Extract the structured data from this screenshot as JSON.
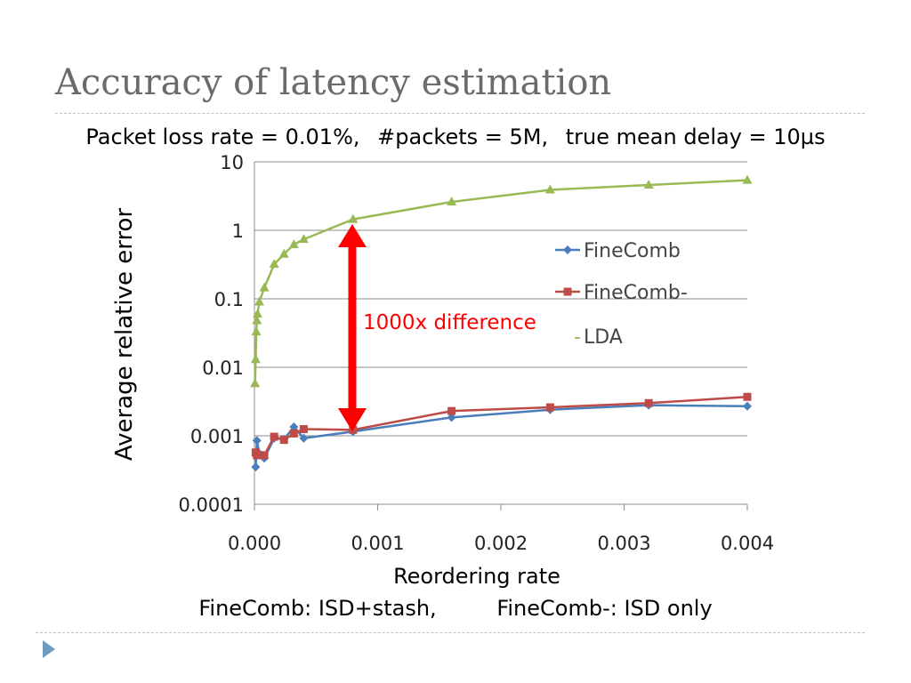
{
  "slide": {
    "title": "Accuracy of latency estimation",
    "subtitle_parts": [
      "Packet loss rate = 0.01%,",
      "#packets = 5M,",
      "true mean delay = 10µs"
    ],
    "footnote_parts": [
      "FineComb: ISD+stash,",
      "FineComb-: ISD only"
    ],
    "nav_icon": "triangle-right-icon"
  },
  "chart_data": {
    "type": "line",
    "title": "",
    "xlabel": "Reordering rate",
    "ylabel": "Average relative error",
    "xlim": [
      0,
      0.004
    ],
    "ylim": [
      0.0001,
      10
    ],
    "yscale": "log",
    "x_ticks": [
      "0.000",
      "0.001",
      "0.002",
      "0.003",
      "0.004"
    ],
    "y_ticks": [
      "10",
      "1",
      "0.1",
      "0.01",
      "0.001",
      "0.0001"
    ],
    "grid": "horizontal",
    "legend_position": "right",
    "annotation": {
      "text": "1000x difference",
      "color": "#ff0000"
    },
    "series": [
      {
        "name": "FineComb",
        "color": "#4a7ebb",
        "marker": "diamond",
        "points": [
          [
            1e-05,
            0.00035
          ],
          [
            2e-05,
            0.00085
          ],
          [
            4e-05,
            0.00055
          ],
          [
            8e-05,
            0.00047
          ],
          [
            0.00016,
            0.00092
          ],
          [
            0.00024,
            0.00089
          ],
          [
            0.00032,
            0.00135
          ],
          [
            0.0004,
            0.00092
          ],
          [
            0.0008,
            0.00115
          ],
          [
            0.0016,
            0.00185
          ],
          [
            0.0024,
            0.0024
          ],
          [
            0.0032,
            0.0028
          ],
          [
            0.004,
            0.0027
          ]
        ]
      },
      {
        "name": "FineComb-",
        "color": "#be4b48",
        "marker": "square",
        "points": [
          [
            1e-05,
            0.00057
          ],
          [
            2e-05,
            0.00052
          ],
          [
            4e-05,
            0.00052
          ],
          [
            8e-05,
            0.00052
          ],
          [
            0.00016,
            0.00097
          ],
          [
            0.00024,
            0.00087
          ],
          [
            0.00032,
            0.00108
          ],
          [
            0.0004,
            0.00125
          ],
          [
            0.0008,
            0.00122
          ],
          [
            0.0016,
            0.0023
          ],
          [
            0.0024,
            0.0026
          ],
          [
            0.0032,
            0.003
          ],
          [
            0.004,
            0.0037
          ]
        ]
      },
      {
        "name": "LDA",
        "color": "#98b954",
        "marker": "triangle",
        "points": [
          [
            5e-06,
            0.0058
          ],
          [
            1e-05,
            0.013
          ],
          [
            1.5e-05,
            0.033
          ],
          [
            2e-05,
            0.048
          ],
          [
            2.5e-05,
            0.06
          ],
          [
            4e-05,
            0.09
          ],
          [
            8e-05,
            0.145
          ],
          [
            0.00016,
            0.32
          ],
          [
            0.00024,
            0.45
          ],
          [
            0.00032,
            0.62
          ],
          [
            0.0004,
            0.74
          ],
          [
            0.0008,
            1.45
          ],
          [
            0.0016,
            2.6
          ],
          [
            0.0024,
            3.9
          ],
          [
            0.0032,
            4.6
          ],
          [
            0.004,
            5.4
          ]
        ]
      }
    ]
  }
}
